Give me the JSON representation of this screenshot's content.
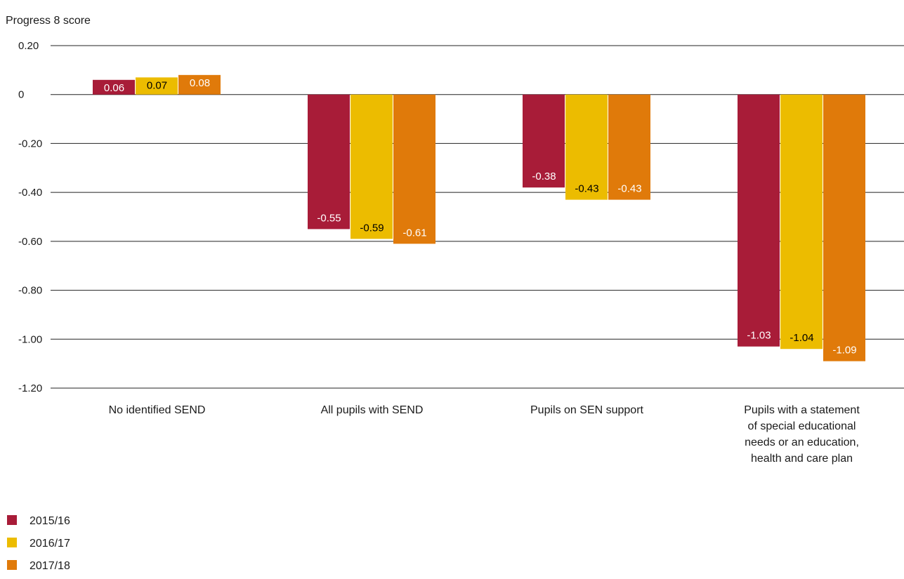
{
  "chart_data": {
    "type": "bar",
    "ylabel": "Progress 8 score",
    "ylim": [
      -1.2,
      0.2
    ],
    "yticks": [
      {
        "value": 0.2,
        "label": "0.20"
      },
      {
        "value": 0,
        "label": "0"
      },
      {
        "value": -0.2,
        "label": "-0.20"
      },
      {
        "value": -0.4,
        "label": "-0.40"
      },
      {
        "value": -0.6,
        "label": "-0.60"
      },
      {
        "value": -0.8,
        "label": "-0.80"
      },
      {
        "value": -1.0,
        "label": "-1.00"
      },
      {
        "value": -1.2,
        "label": "-1.20"
      }
    ],
    "categories": [
      [
        "No identified SEND"
      ],
      [
        "All pupils with SEND"
      ],
      [
        "Pupils on SEN support"
      ],
      [
        "Pupils with a statement",
        "of special educational",
        "needs or an education,",
        "health and care plan"
      ]
    ],
    "series": [
      {
        "name": "2015/16",
        "color": "#a81c38",
        "label_color": "#ffffff",
        "values": [
          0.06,
          -0.55,
          -0.38,
          -1.03
        ],
        "labels": [
          "0.06",
          "-0.55",
          "-0.38",
          "-1.03"
        ]
      },
      {
        "name": "2016/17",
        "color": "#ecbc00",
        "label_color": "#000000",
        "values": [
          0.07,
          -0.59,
          -0.43,
          -1.04
        ],
        "labels": [
          "0.07",
          "-0.59",
          "-0.43",
          "-1.04"
        ]
      },
      {
        "name": "2017/18",
        "color": "#e07a0a",
        "label_color": "#ffffff",
        "values": [
          0.08,
          -0.61,
          -0.43,
          -1.09
        ],
        "labels": [
          "0.08",
          "-0.61",
          "-0.43",
          "-1.09"
        ]
      }
    ],
    "grid": true,
    "legend_position": "bottom-left"
  }
}
